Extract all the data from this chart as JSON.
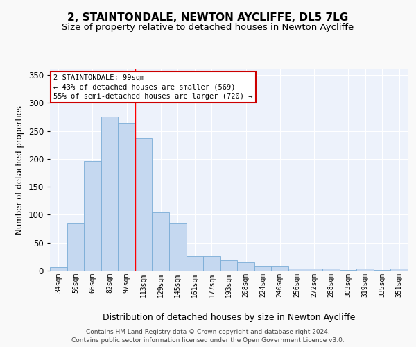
{
  "title1": "2, STAINTONDALE, NEWTON AYCLIFFE, DL5 7LG",
  "title2": "Size of property relative to detached houses in Newton Aycliffe",
  "xlabel": "Distribution of detached houses by size in Newton Aycliffe",
  "ylabel": "Number of detached properties",
  "categories": [
    "34sqm",
    "50sqm",
    "66sqm",
    "82sqm",
    "97sqm",
    "113sqm",
    "129sqm",
    "145sqm",
    "161sqm",
    "177sqm",
    "193sqm",
    "208sqm",
    "224sqm",
    "240sqm",
    "256sqm",
    "272sqm",
    "288sqm",
    "303sqm",
    "319sqm",
    "335sqm",
    "351sqm"
  ],
  "values": [
    6,
    85,
    196,
    275,
    265,
    237,
    104,
    85,
    26,
    26,
    19,
    15,
    8,
    7,
    4,
    4,
    4,
    1,
    4,
    1,
    4
  ],
  "bar_color": "#c5d8f0",
  "bar_edge_color": "#7aacd6",
  "ylim": [
    0,
    360
  ],
  "yticks": [
    0,
    50,
    100,
    150,
    200,
    250,
    300,
    350
  ],
  "red_line_x": 4.5,
  "annotation_text": "2 STAINTONDALE: 99sqm\n← 43% of detached houses are smaller (569)\n55% of semi-detached houses are larger (720) →",
  "annotation_box_color": "#ffffff",
  "annotation_box_edge": "#cc0000",
  "footer_text": "Contains HM Land Registry data © Crown copyright and database right 2024.\nContains public sector information licensed under the Open Government Licence v3.0.",
  "background_color": "#edf2fb",
  "grid_color": "#ffffff",
  "fig_background": "#f9f9f9",
  "title1_fontsize": 11,
  "title2_fontsize": 9.5,
  "xlabel_fontsize": 9,
  "ylabel_fontsize": 8.5,
  "annotation_fontsize": 7.5,
  "footer_fontsize": 6.5
}
